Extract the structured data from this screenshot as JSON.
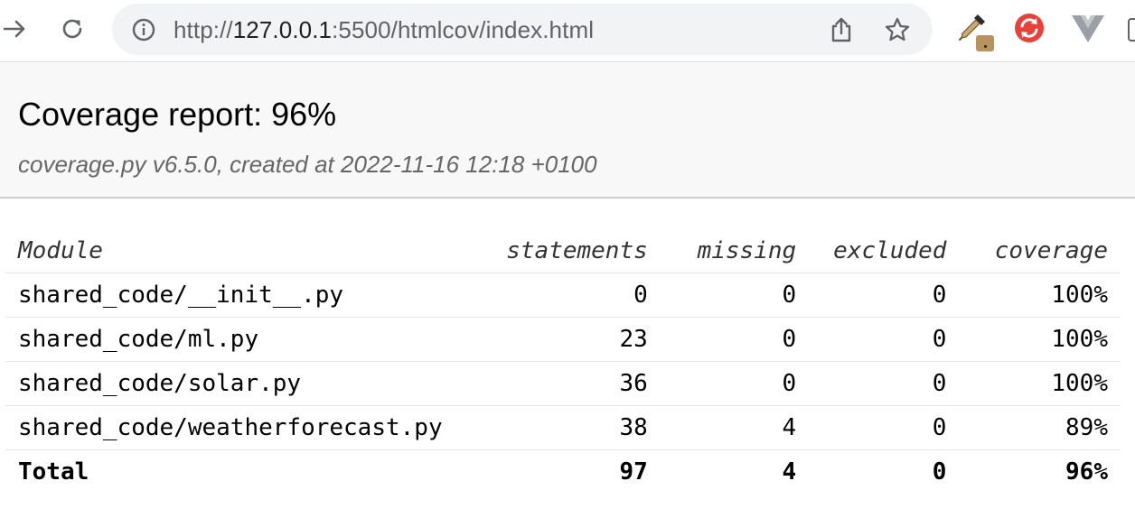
{
  "browser": {
    "url_scheme": "http://",
    "url_host": "127.0.0.1",
    "url_rest": ":5500/htmlcov/index.html",
    "icons": {
      "forward": "arrow-right-icon",
      "reload": "reload-icon",
      "info": "info-icon",
      "share": "share-icon",
      "bookmark": "star-icon",
      "ext_dropper": "eyedropper-icon",
      "ext_refresh": "sync-icon",
      "ext_vue": "vue-devtools-icon"
    }
  },
  "header": {
    "title": "Coverage report: 96%",
    "subtitle": "coverage.py v6.5.0, created at 2022-11-16 12:18 +0100"
  },
  "table": {
    "columns": [
      "Module",
      "statements",
      "missing",
      "excluded",
      "coverage"
    ],
    "rows": [
      {
        "module": "shared_code/__init__.py",
        "statements": "0",
        "missing": "0",
        "excluded": "0",
        "coverage": "100%"
      },
      {
        "module": "shared_code/ml.py",
        "statements": "23",
        "missing": "0",
        "excluded": "0",
        "coverage": "100%"
      },
      {
        "module": "shared_code/solar.py",
        "statements": "36",
        "missing": "0",
        "excluded": "0",
        "coverage": "100%"
      },
      {
        "module": "shared_code/weatherforecast.py",
        "statements": "38",
        "missing": "4",
        "excluded": "0",
        "coverage": "89%"
      }
    ],
    "total": {
      "module": "Total",
      "statements": "97",
      "missing": "4",
      "excluded": "0",
      "coverage": "96%"
    }
  },
  "colors": {
    "header_bg": "#f8f8f8",
    "omnibox_bg": "#f1f3f4",
    "refresh_ext": "#e8413a",
    "vue_ext": "#9aa0a6"
  }
}
